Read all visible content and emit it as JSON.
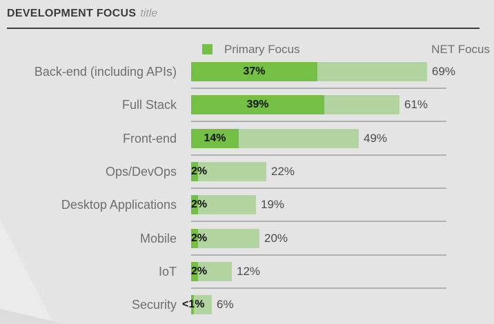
{
  "header": {
    "title": "DEVELOPMENT FOCUS",
    "subtitle": "title"
  },
  "legend": {
    "primary": "Primary Focus",
    "net": "NET Focus"
  },
  "colors": {
    "background": "#e4e4e4",
    "primary_bar": "#74c044",
    "net_bar": "#b2d4a1",
    "legend_swatch": "#74c044",
    "title_text": "#3b3b3b",
    "subtitle_text": "#9b9b9b",
    "label_text": "#6e6e6e",
    "primary_value_text": "#111111",
    "net_value_text": "#4a4a4a",
    "separator": "#b0b0b0",
    "header_rule": "#3b3b3b",
    "watermark": "#ebebeb"
  },
  "chart_data": {
    "type": "bar",
    "orientation": "horizontal",
    "title": "DEVELOPMENT FOCUS",
    "legend_position": "top",
    "xlim": [
      0,
      75
    ],
    "grid": false,
    "categories": [
      "Back-end (including APIs)",
      "Full Stack",
      "Front-end",
      "Ops/DevOps",
      "Desktop Applications",
      "Mobile",
      "IoT",
      "Security"
    ],
    "series": [
      {
        "name": "Primary Focus",
        "values": [
          37,
          39,
          14,
          2,
          2,
          2,
          2,
          0.5
        ],
        "labels": [
          "37%",
          "39%",
          "14%",
          "2%",
          "2%",
          "2%",
          "2%",
          "<1%"
        ]
      },
      {
        "name": "NET Focus",
        "values": [
          69,
          61,
          49,
          22,
          19,
          20,
          12,
          6
        ],
        "labels": [
          "69%",
          "61%",
          "49%",
          "22%",
          "19%",
          "20%",
          "12%",
          "6%"
        ]
      }
    ]
  }
}
